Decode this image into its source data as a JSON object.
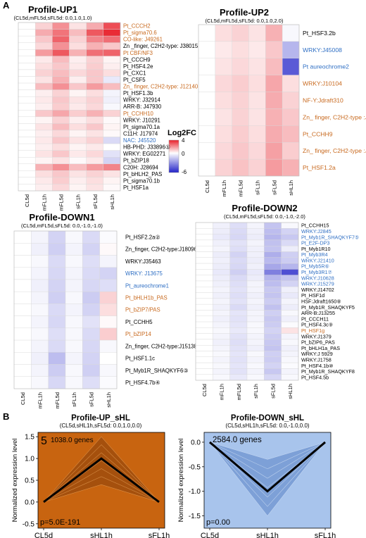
{
  "panel_labels": [
    "A",
    "B"
  ],
  "colors": {
    "label_black": "#000000",
    "label_orange": "#c8691e",
    "label_blue": "#2f6fc4",
    "heat_high": "#e8202a",
    "heat_mid": "#ffffff",
    "heat_low": "#2323c8",
    "grid": "#d9d9d9",
    "up_fill": "#c86410",
    "up_band": "#9a4a0c",
    "down_fill": "#a8c4ec",
    "down_band": "#6f94d0"
  },
  "colorbar": {
    "title": "Log2FC",
    "ticks": [
      "4",
      "0",
      "-6"
    ],
    "range": [
      -6,
      4
    ]
  },
  "conditions": [
    "CL5d",
    "mFL1h",
    "mFL5d",
    "sFL1h",
    "sFL5d",
    "sHL1h"
  ],
  "chart_data": [
    {
      "type": "heatmap",
      "id": "up1",
      "title": "Profile-UP1",
      "subtitle": "(CL5d,mFL5d,sFL5d: 0.0,1.0,1.0)",
      "columns": [
        "CL5d",
        "mFL1h",
        "mFL5d",
        "sFL1h",
        "sFL5d",
        "sHL1h"
      ],
      "rows": [
        {
          "label": "Pt_CCCH2",
          "color": "orange",
          "values": [
            0,
            0.8,
            2.0,
            0.5,
            1.5,
            3.2
          ]
        },
        {
          "label": "Pt_sigma70.6",
          "color": "orange",
          "values": [
            0,
            1.5,
            2.5,
            1.2,
            3.0,
            3.8
          ]
        },
        {
          "label": "CO-like: J49261",
          "color": "orange",
          "values": [
            0,
            1.0,
            2.8,
            0.8,
            2.2,
            2.6
          ]
        },
        {
          "label": "Zn _finger, C2H2-type: J38015",
          "color": "black",
          "values": [
            0,
            0.7,
            2.0,
            0.6,
            1.4,
            1.0
          ]
        },
        {
          "label": "Pt CBF/NF3",
          "color": "orange",
          "values": [
            0,
            1.8,
            3.0,
            1.4,
            2.6,
            2.8
          ]
        },
        {
          "label": "Pt_CCCH9",
          "color": "black",
          "values": [
            0,
            0.4,
            1.2,
            0.3,
            0.8,
            0.2
          ]
        },
        {
          "label": "Pt_HSF4.2e",
          "color": "black",
          "values": [
            0,
            0.6,
            1.0,
            0.4,
            0.9,
            0.3
          ]
        },
        {
          "label": "Pt_CXC1",
          "color": "black",
          "values": [
            0,
            0.8,
            1.2,
            0.7,
            1.0,
            0.6
          ]
        },
        {
          "label": "Pt_CSF5",
          "color": "black",
          "values": [
            0,
            0.5,
            1.4,
            0.3,
            1.0,
            -0.6
          ]
        },
        {
          "label": "Zn_ finger, C2H2-type: J12140",
          "color": "orange",
          "values": [
            0,
            1.2,
            2.0,
            1.0,
            1.8,
            1.2
          ]
        },
        {
          "label": "Pt_HSF1.3b",
          "color": "black",
          "values": [
            0,
            0.3,
            0.8,
            0.2,
            0.6,
            -0.3
          ]
        },
        {
          "label": "WRKY: J32914",
          "color": "black",
          "values": [
            0,
            0.4,
            1.0,
            0.5,
            0.8,
            -0.4
          ]
        },
        {
          "label": "ARR-B: J47930",
          "color": "black",
          "values": [
            0,
            0.3,
            0.9,
            0.4,
            0.7,
            -0.2
          ]
        },
        {
          "label": "Pt_CCHH10",
          "color": "orange",
          "values": [
            0,
            1.0,
            1.6,
            0.9,
            1.4,
            0.8
          ]
        },
        {
          "label": "WRKY: J10291",
          "color": "black",
          "values": [
            0,
            0.2,
            0.8,
            0.3,
            0.6,
            0.1
          ]
        },
        {
          "label": "Pt_sigma70.1a",
          "color": "black",
          "values": [
            0,
            0.5,
            1.2,
            0.6,
            1.0,
            0.2
          ]
        },
        {
          "label": "C11H: J17974",
          "color": "black",
          "values": [
            0,
            0.3,
            0.7,
            0.2,
            0.5,
            0.1
          ]
        },
        {
          "label": "NAC: J45520",
          "color": "blue",
          "values": [
            0,
            0.4,
            1.0,
            0.5,
            0.8,
            -1.0
          ]
        },
        {
          "label": "HB-PHD: J33896",
          "marker": "1",
          "color": "black",
          "values": [
            0,
            0.3,
            0.6,
            0.2,
            0.4,
            0.0
          ]
        },
        {
          "label": "WRKY: EG02271",
          "color": "black",
          "values": [
            0,
            0.5,
            1.0,
            0.4,
            0.7,
            -0.8
          ]
        },
        {
          "label": "Pt_bZIP18",
          "color": "black",
          "values": [
            0,
            0.2,
            0.5,
            0.1,
            0.4,
            -1.2
          ]
        },
        {
          "label": "C20H: J28694",
          "color": "black",
          "values": [
            0,
            1.4,
            2.0,
            1.2,
            1.8,
            2.2
          ]
        },
        {
          "label": "Pt_bHLH2_PAS",
          "color": "black",
          "values": [
            0,
            0.6,
            1.0,
            0.5,
            0.8,
            0.5
          ]
        },
        {
          "label": "Pt_sigma70.1b",
          "color": "black",
          "values": [
            0,
            0.4,
            0.9,
            0.3,
            0.6,
            0.2
          ]
        },
        {
          "label": "Pt_HSF1a",
          "color": "black",
          "values": [
            0,
            0.3,
            0.7,
            0.2,
            0.5,
            0.1
          ]
        }
      ]
    },
    {
      "type": "heatmap",
      "id": "up2",
      "title": "Profile-UP2",
      "subtitle": "(CL5d,mFL5d,sFL5d: 0.0,1.0,2.0)",
      "columns": [
        "CL5d",
        "mFL1h",
        "mFL5d",
        "sFL1h",
        "sFL5d",
        "sHL1h"
      ],
      "rows": [
        {
          "label": "Pt_HSF3.2b",
          "color": "black",
          "values": [
            0,
            0.6,
            0.8,
            0.5,
            1.4,
            -0.2
          ]
        },
        {
          "label": "WRKY:J45008",
          "color": "blue",
          "values": [
            0,
            0.4,
            0.6,
            0.4,
            1.0,
            -2.0
          ]
        },
        {
          "label": "Pt aureochrome2",
          "color": "blue",
          "values": [
            0,
            0.5,
            0.7,
            0.5,
            1.2,
            -4.5
          ]
        },
        {
          "label": "WRKY:J10104",
          "color": "orange",
          "values": [
            0,
            0.7,
            0.9,
            0.6,
            1.6,
            0.6
          ]
        },
        {
          "label": "NF-Y:Jdraft310",
          "color": "orange",
          "values": [
            0,
            0.6,
            0.8,
            0.5,
            1.5,
            0.8
          ]
        },
        {
          "label": "Zn_ finger, C2H2-type :J4209",
          "color": "orange",
          "values": [
            0,
            0.5,
            0.8,
            0.5,
            1.4,
            1.0
          ]
        },
        {
          "label": "Pt_CCHH9",
          "color": "orange",
          "values": [
            0,
            0.6,
            0.9,
            0.6,
            1.5,
            1.2
          ]
        },
        {
          "label": "Zn_ finger, C2H2-type :J43061",
          "color": "orange",
          "values": [
            0,
            0.7,
            1.0,
            0.7,
            1.7,
            0.9
          ]
        },
        {
          "label": "Pt_HSF1.2a",
          "color": "orange",
          "values": [
            0,
            0.8,
            1.1,
            0.8,
            1.8,
            1.4
          ]
        }
      ]
    },
    {
      "type": "heatmap",
      "id": "down1",
      "title": "Profile-DOWN1",
      "subtitle": "(CL5d,mFL5d,sFL5d: 0.0,-1.0,-1.0)",
      "columns": [
        "CL5d",
        "mFL1h",
        "mFL5d",
        "sFL1h",
        "sFL5d",
        "sHL1h"
      ],
      "rows": [
        {
          "label": "Pt_HSF2.2a",
          "marker": "2",
          "color": "black",
          "values": [
            0,
            -0.3,
            -1.2,
            -0.2,
            -1.0,
            -0.1
          ]
        },
        {
          "label": "Zn_finger, C2H2-type:J18096",
          "color": "black",
          "values": [
            0,
            -0.4,
            -1.3,
            -0.3,
            -1.2,
            0.1
          ]
        },
        {
          "label": "WRKY:J35463",
          "color": "black",
          "values": [
            0,
            -0.2,
            -1.0,
            -0.2,
            -0.9,
            -0.3
          ]
        },
        {
          "label": "WRKY: J13675",
          "color": "blue",
          "values": [
            0,
            -0.3,
            -1.1,
            -0.3,
            -1.0,
            -1.2
          ]
        },
        {
          "label": "Pt_aureochrome1",
          "color": "blue",
          "values": [
            0,
            -0.4,
            -1.2,
            -0.3,
            -1.1,
            -0.9
          ]
        },
        {
          "label": "Pt_bHLH1b_PAS",
          "color": "orange",
          "values": [
            0,
            -0.3,
            -1.3,
            -0.2,
            -1.4,
            0.8
          ]
        },
        {
          "label": "Pt_bZIP7/PAS",
          "color": "orange",
          "values": [
            0,
            -0.2,
            -1.0,
            -0.3,
            -1.2,
            0.6
          ]
        },
        {
          "label": "Pt_CCHH5",
          "color": "black",
          "values": [
            0,
            -0.3,
            -1.1,
            -0.2,
            -0.8,
            0.1
          ]
        },
        {
          "label": "Pt_bZIP14",
          "color": "orange",
          "values": [
            0,
            -0.2,
            -0.9,
            -0.2,
            -1.0,
            0.9
          ]
        },
        {
          "label": "Zn_finger, C2H2-type:J15138",
          "color": "black",
          "values": [
            0,
            -0.3,
            -1.0,
            -0.2,
            -1.1,
            -0.2
          ]
        },
        {
          "label": "Pt_HSF1.1c",
          "color": "black",
          "values": [
            0,
            -0.4,
            -1.8,
            -0.3,
            -1.2,
            0.0
          ]
        },
        {
          "label": "Pt_Myb1R_SHAQKYF6",
          "marker": "3",
          "color": "black",
          "values": [
            0,
            -0.3,
            -1.4,
            -0.2,
            -1.3,
            -0.2
          ]
        },
        {
          "label": "Pt_HSF4.7b",
          "marker": "4",
          "color": "black",
          "values": [
            0,
            -0.2,
            -1.1,
            -0.2,
            -0.9,
            -0.1
          ]
        }
      ]
    },
    {
      "type": "heatmap",
      "id": "down2",
      "title": "Profile-DOWN2",
      "subtitle": "(CL5d,mFL5d,sFL5d: 0.0,-1.0,-2.0)",
      "columns": [
        "CL5d",
        "mFL1h",
        "mFL5d",
        "sFL1h",
        "sFL5d",
        "sHL1h"
      ],
      "rows": [
        {
          "label": "Pt_CCHH15",
          "color": "black",
          "values": [
            0,
            -0.4,
            -0.9,
            -0.3,
            -1.6,
            -0.2
          ]
        },
        {
          "label": "WRKY:J2845",
          "color": "blue",
          "values": [
            0,
            -0.5,
            -1.0,
            -0.4,
            -1.8,
            -1.2
          ]
        },
        {
          "label": "Pt_Myb1R_SHAQKYF7",
          "marker": "5",
          "color": "blue",
          "values": [
            0,
            -0.6,
            -1.1,
            -0.5,
            -2.0,
            -1.5
          ]
        },
        {
          "label": "Pt_E2F-DP3",
          "color": "blue",
          "values": [
            0,
            -0.4,
            -0.8,
            -0.3,
            -1.7,
            -1.0
          ]
        },
        {
          "label": "Pt_Myb1R10",
          "color": "black",
          "values": [
            0,
            -0.3,
            -0.9,
            -0.4,
            -1.6,
            -0.5
          ]
        },
        {
          "label": "Pt_Myb3R4",
          "color": "blue",
          "values": [
            0,
            -0.5,
            -1.2,
            -0.4,
            -2.2,
            -1.3
          ]
        },
        {
          "label": "WRKY:J21410",
          "color": "blue",
          "values": [
            0,
            -0.4,
            -1.0,
            -0.5,
            -1.9,
            -1.4
          ]
        },
        {
          "label": "Pt_Myb5R",
          "marker": "6",
          "color": "blue",
          "values": [
            0,
            -0.5,
            -1.1,
            -0.4,
            -2.4,
            -2.0
          ]
        },
        {
          "label": "Pt_Myb3R1",
          "marker": "7",
          "color": "blue",
          "values": [
            0,
            -0.6,
            -1.3,
            -0.6,
            -3.5,
            -4.8
          ]
        },
        {
          "label": "WRKY:J10628",
          "color": "blue",
          "values": [
            0,
            -0.5,
            -1.0,
            -0.5,
            -2.0,
            -1.6
          ]
        },
        {
          "label": "WRKY:J15279",
          "color": "blue",
          "values": [
            0,
            -0.4,
            -0.9,
            -0.3,
            -1.8,
            -1.2
          ]
        },
        {
          "label": "WRKY:J14702",
          "color": "black",
          "values": [
            0,
            -0.3,
            -0.8,
            -0.3,
            -1.5,
            -0.4
          ]
        },
        {
          "label": "Pt_HSF1d",
          "color": "black",
          "values": [
            0,
            -0.4,
            -0.9,
            -0.4,
            -1.6,
            -0.6
          ]
        },
        {
          "label": "HSF:Jdraft1650",
          "marker": "8",
          "color": "black",
          "values": [
            0,
            -0.3,
            -0.8,
            -0.3,
            -1.4,
            -0.3
          ]
        },
        {
          "label": "Pt_Myb1R_SHAQKYF5",
          "color": "black",
          "values": [
            0,
            -0.4,
            -1.0,
            -0.4,
            -1.7,
            -0.5
          ]
        },
        {
          "label": "ARR-B:J13255",
          "color": "black",
          "values": [
            0,
            -0.3,
            -0.7,
            -0.3,
            -1.3,
            -0.2
          ]
        },
        {
          "label": "Pt_CCCH11",
          "color": "black",
          "values": [
            0,
            -0.4,
            -0.8,
            -0.3,
            -1.5,
            -0.4
          ]
        },
        {
          "label": "Pt_HSF4.3c",
          "marker": "9",
          "color": "black",
          "values": [
            0,
            -0.3,
            -0.7,
            -0.2,
            -1.4,
            -0.1
          ]
        },
        {
          "label": "Pt_HSF1g",
          "color": "orange",
          "values": [
            0,
            -0.2,
            -0.6,
            -0.2,
            -1.2,
            0.5
          ]
        },
        {
          "label": "WRKY:J1379",
          "color": "black",
          "values": [
            0,
            -0.3,
            -0.8,
            -0.3,
            -1.4,
            -0.3
          ]
        },
        {
          "label": "Pt_bZIP6_PAS",
          "color": "black",
          "values": [
            0,
            -0.4,
            -0.9,
            -0.3,
            -1.5,
            -0.2
          ]
        },
        {
          "label": "Pt_bHLH1a_PAS",
          "color": "black",
          "values": [
            0,
            -0.3,
            -0.8,
            -0.4,
            -1.6,
            -0.4
          ]
        },
        {
          "label": "WRKY:J 5929",
          "color": "black",
          "values": [
            0,
            -0.2,
            -0.7,
            -0.2,
            -1.3,
            -0.3
          ]
        },
        {
          "label": "WRKY:J1758",
          "color": "black",
          "values": [
            0,
            -0.3,
            -0.8,
            -0.3,
            -1.4,
            -0.2
          ]
        },
        {
          "label": "Pt_HSF4.1b",
          "marker": "10",
          "color": "black",
          "values": [
            0,
            -0.2,
            -0.7,
            -0.2,
            -1.2,
            -0.1
          ]
        },
        {
          "label": "Pt_Myb1R_SHAQKYF8",
          "color": "black",
          "values": [
            0,
            -0.3,
            -0.8,
            -0.3,
            -1.5,
            -0.3
          ]
        },
        {
          "label": "Pt_HSF4.5b",
          "color": "black",
          "values": [
            0,
            -0.2,
            -0.6,
            -0.2,
            -1.1,
            -0.2
          ]
        }
      ]
    },
    {
      "type": "line",
      "id": "up_shl",
      "title": "Profile-UP_sHL",
      "subtitle": "(CL5d,sHL1h,sFL5d: 0.0,1.0,0.0)",
      "profile_number": "5",
      "genes": "1038.0 genes",
      "pvalue": "p=5.0E-191",
      "ylabel": "Normalized expression level",
      "x": [
        "CL5d",
        "sHL1h",
        "sFL1h"
      ],
      "ylim": [
        -0.6,
        1.6
      ],
      "yticks": [
        -0.5,
        0.0,
        0.5,
        1.0,
        1.5
      ],
      "series": [
        {
          "values": [
            0.0,
            1.0,
            0.0
          ]
        }
      ],
      "band_upper": [
        0.0,
        1.5,
        0.0
      ],
      "band_lower": [
        0.0,
        0.4,
        0.0
      ]
    },
    {
      "type": "line",
      "id": "down_shl",
      "title": "Profile-DOWN_sHL",
      "subtitle": "(CL5d,sHL1h,sFL5d: 0.0,-1.0,0.0)",
      "genes": "2584.0 genes",
      "pvalue": "p=0.00",
      "ylabel": "Normalized expression level",
      "x": [
        "CL5d",
        "sHL1h",
        "sFL1h"
      ],
      "ylim": [
        -1.75,
        0.2
      ],
      "yticks": [
        -1.5,
        -1.0,
        -0.5,
        0.0
      ],
      "series": [
        {
          "values": [
            0.0,
            -1.0,
            0.0
          ]
        }
      ],
      "band_upper": [
        0.0,
        -0.35,
        0.0
      ],
      "band_lower": [
        0.0,
        -1.5,
        0.0
      ]
    }
  ]
}
